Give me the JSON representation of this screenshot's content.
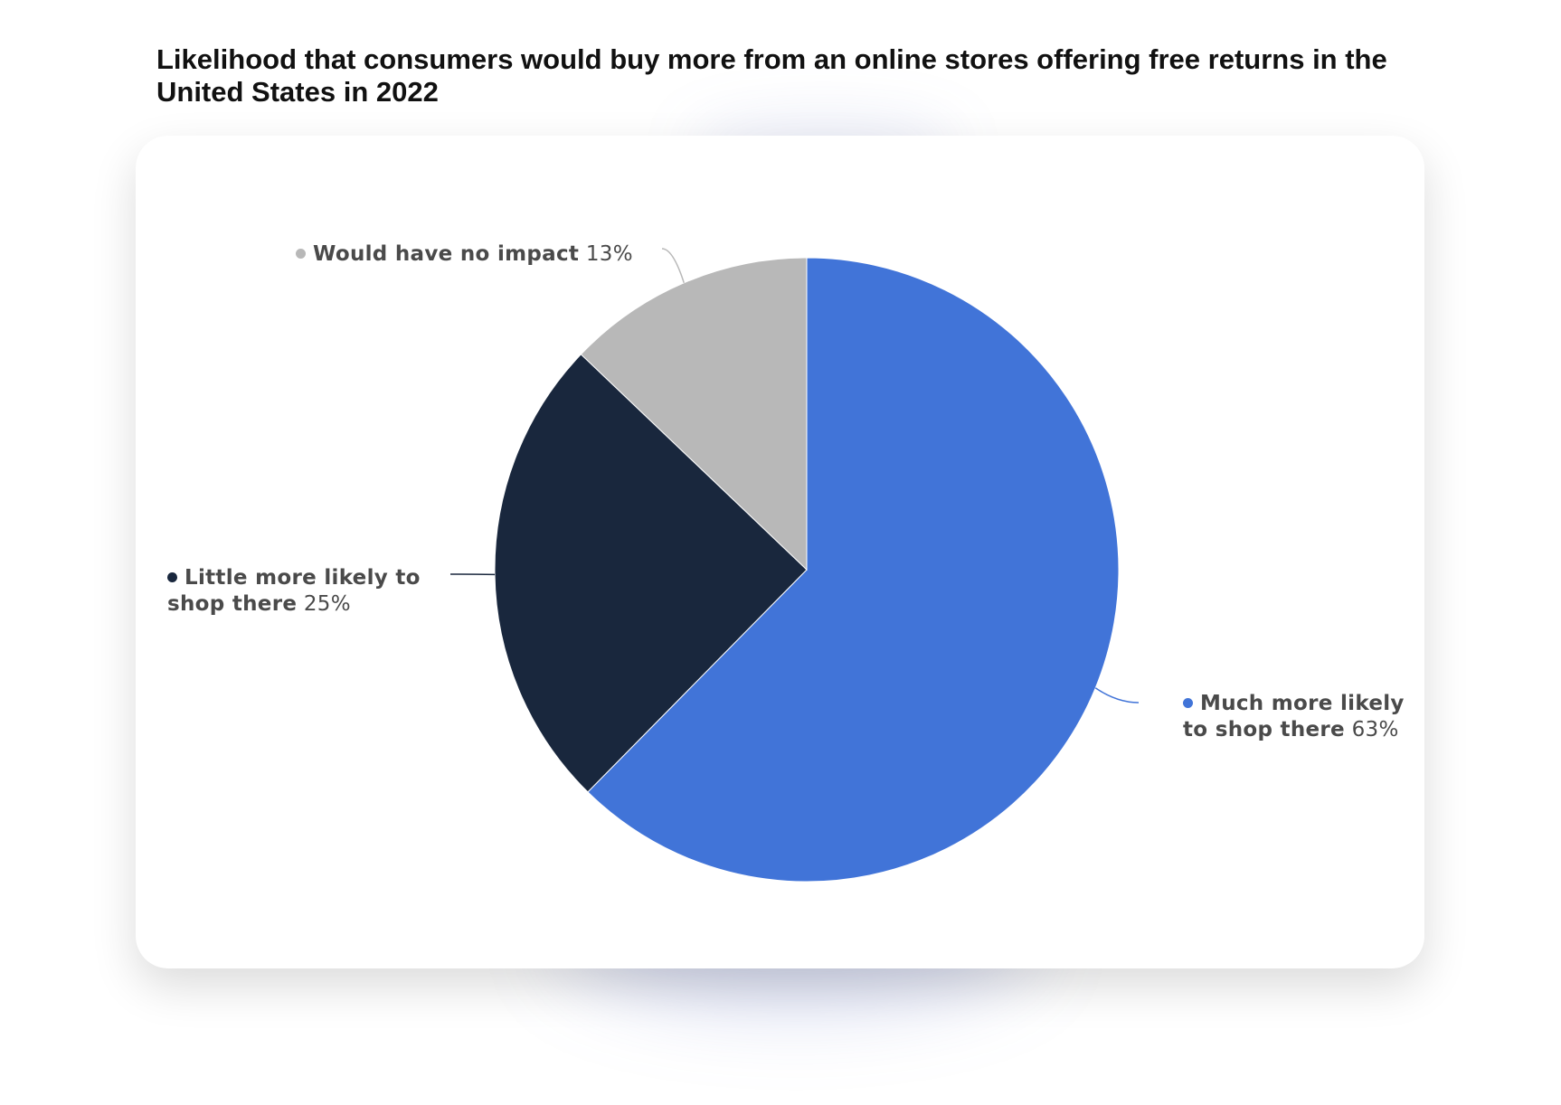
{
  "chart_data": {
    "type": "pie",
    "title": "Likelihood that consumers would buy more from an online stores offering free returns in the United States in 2022",
    "categories": [
      "Much more likely to shop there",
      "Little more likely to shop there",
      "Would have no impact"
    ],
    "values": [
      63,
      25,
      13
    ],
    "value_labels": [
      "63%",
      "25%",
      "13%"
    ],
    "colors": [
      "#4174d8",
      "#19273d",
      "#b8b8b8"
    ]
  }
}
